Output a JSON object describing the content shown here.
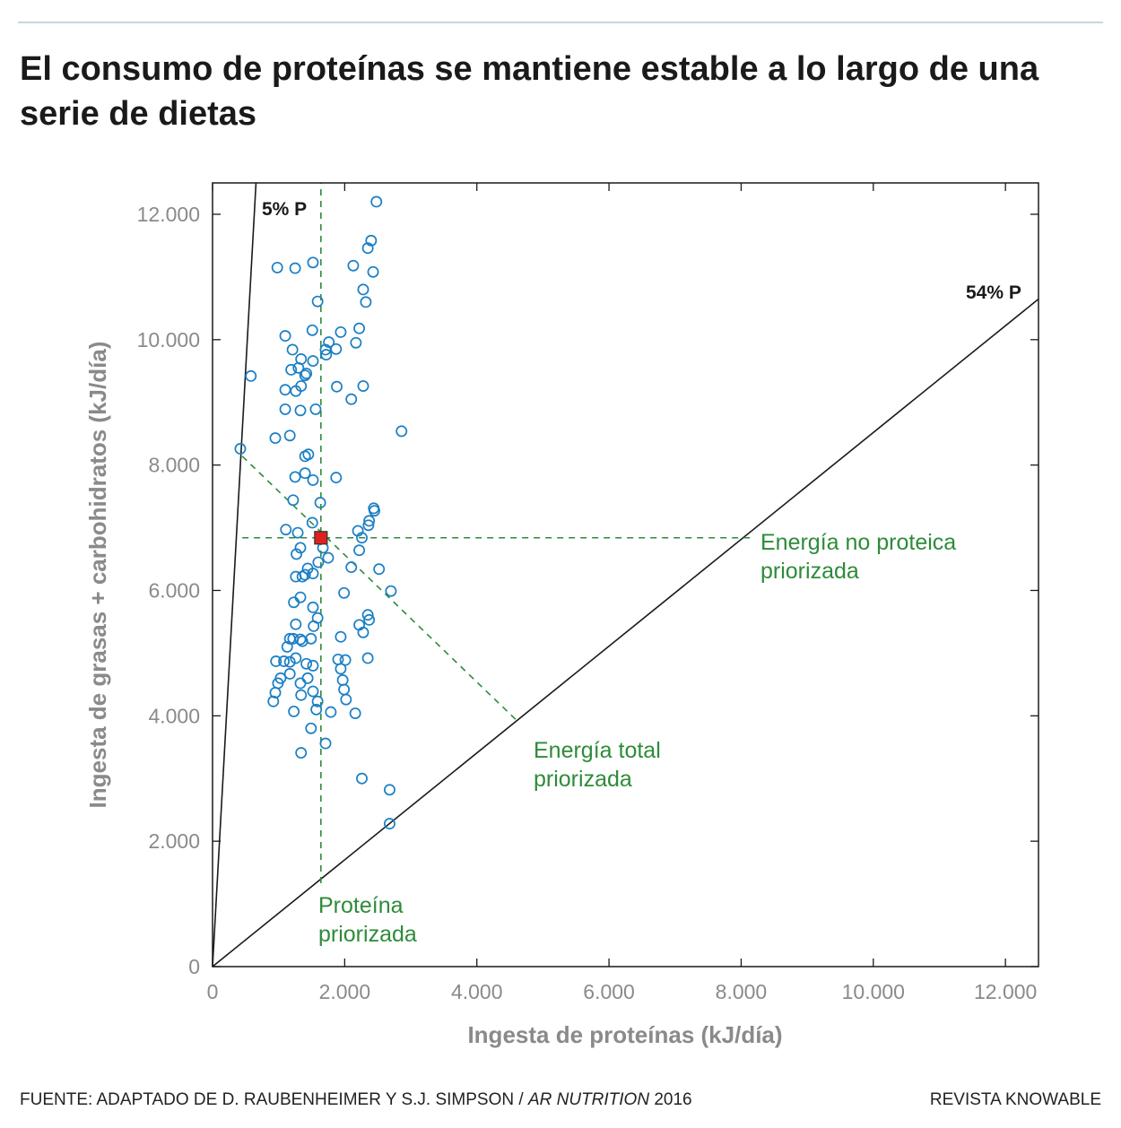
{
  "header": {
    "title": "El consumo de proteínas se mantiene estable a lo largo de una serie de dietas"
  },
  "footer": {
    "source_prefix": "FUENTE: ADAPTADO DE D. RAUBENHEIMER Y S.J. SIMPSON / ",
    "source_journal": "AR NUTRITION",
    "source_year": " 2016",
    "credit": "REVISTA KNOWABLE"
  },
  "chart_data": {
    "type": "scatter",
    "title": "El consumo de proteínas se mantiene estable a lo largo de una serie de dietas",
    "xlabel": "Ingesta de proteínas (kJ/día)",
    "ylabel": "Ingesta de grasas + carbohidratos (kJ/día)",
    "xlim": [
      0,
      12500
    ],
    "ylim": [
      0,
      12500
    ],
    "xticks": [
      0,
      2000,
      4000,
      6000,
      8000,
      10000,
      12000
    ],
    "xtick_labels": [
      "0",
      "2.000",
      "4.000",
      "6.000",
      "8.000",
      "10.000",
      "12.000"
    ],
    "yticks": [
      0,
      2000,
      4000,
      6000,
      8000,
      10000,
      12000
    ],
    "ytick_labels": [
      "0",
      "2.000",
      "4.000",
      "6.000",
      "8.000",
      "10.000",
      "12.000"
    ],
    "grid": false,
    "colors": {
      "points": "#1a7fc4",
      "target": "#e02020",
      "guides": "#2e8b3a",
      "ref_lines": "#1a1a1a"
    },
    "points": [
      [
        2480,
        12200
      ],
      [
        2400,
        11580
      ],
      [
        2350,
        11460
      ],
      [
        980,
        11150
      ],
      [
        1250,
        11140
      ],
      [
        1520,
        11230
      ],
      [
        2130,
        11180
      ],
      [
        2430,
        11080
      ],
      [
        2280,
        10800
      ],
      [
        2320,
        10600
      ],
      [
        1590,
        10610
      ],
      [
        1100,
        10060
      ],
      [
        1510,
        10150
      ],
      [
        1940,
        10120
      ],
      [
        2220,
        10180
      ],
      [
        2170,
        9950
      ],
      [
        1760,
        9960
      ],
      [
        1870,
        9850
      ],
      [
        1710,
        9840
      ],
      [
        1720,
        9760
      ],
      [
        1210,
        9840
      ],
      [
        1340,
        9690
      ],
      [
        1520,
        9660
      ],
      [
        1190,
        9520
      ],
      [
        1300,
        9550
      ],
      [
        1400,
        9430
      ],
      [
        1420,
        9460
      ],
      [
        580,
        9420
      ],
      [
        1100,
        9200
      ],
      [
        1260,
        9180
      ],
      [
        1340,
        9260
      ],
      [
        1880,
        9250
      ],
      [
        2280,
        9260
      ],
      [
        2100,
        9050
      ],
      [
        1100,
        8890
      ],
      [
        1330,
        8870
      ],
      [
        1560,
        8890
      ],
      [
        2860,
        8540
      ],
      [
        950,
        8430
      ],
      [
        1170,
        8470
      ],
      [
        420,
        8260
      ],
      [
        1400,
        8140
      ],
      [
        1450,
        8170
      ],
      [
        1250,
        7810
      ],
      [
        1400,
        7870
      ],
      [
        1520,
        7760
      ],
      [
        1870,
        7800
      ],
      [
        1220,
        7440
      ],
      [
        1630,
        7400
      ],
      [
        2440,
        7310
      ],
      [
        2450,
        7270
      ],
      [
        2370,
        7110
      ],
      [
        2360,
        7040
      ],
      [
        2200,
        6950
      ],
      [
        2260,
        6840
      ],
      [
        1510,
        7080
      ],
      [
        1110,
        6970
      ],
      [
        1290,
        6920
      ],
      [
        1330,
        6680
      ],
      [
        1270,
        6580
      ],
      [
        1670,
        6680
      ],
      [
        2220,
        6640
      ],
      [
        1750,
        6520
      ],
      [
        1600,
        6450
      ],
      [
        2100,
        6370
      ],
      [
        2520,
        6340
      ],
      [
        1440,
        6350
      ],
      [
        1520,
        6270
      ],
      [
        1260,
        6220
      ],
      [
        1360,
        6220
      ],
      [
        1400,
        6250
      ],
      [
        1990,
        5960
      ],
      [
        2700,
        5990
      ],
      [
        1330,
        5890
      ],
      [
        1230,
        5810
      ],
      [
        1520,
        5730
      ],
      [
        1590,
        5560
      ],
      [
        1260,
        5460
      ],
      [
        1530,
        5430
      ],
      [
        2350,
        5610
      ],
      [
        2370,
        5530
      ],
      [
        2220,
        5450
      ],
      [
        1170,
        5230
      ],
      [
        1220,
        5230
      ],
      [
        1330,
        5220
      ],
      [
        1490,
        5230
      ],
      [
        1940,
        5260
      ],
      [
        2280,
        5330
      ],
      [
        960,
        4870
      ],
      [
        1080,
        4870
      ],
      [
        1170,
        4860
      ],
      [
        1260,
        4920
      ],
      [
        1130,
        5100
      ],
      [
        1360,
        5190
      ],
      [
        1420,
        4830
      ],
      [
        1520,
        4800
      ],
      [
        1900,
        4900
      ],
      [
        2010,
        4890
      ],
      [
        2350,
        4920
      ],
      [
        1170,
        4670
      ],
      [
        1030,
        4600
      ],
      [
        990,
        4520
      ],
      [
        950,
        4370
      ],
      [
        920,
        4230
      ],
      [
        1330,
        4520
      ],
      [
        1440,
        4600
      ],
      [
        1340,
        4330
      ],
      [
        1520,
        4390
      ],
      [
        1590,
        4230
      ],
      [
        1570,
        4100
      ],
      [
        1230,
        4070
      ],
      [
        1790,
        4060
      ],
      [
        2160,
        4040
      ],
      [
        1940,
        4750
      ],
      [
        1970,
        4570
      ],
      [
        1990,
        4420
      ],
      [
        2020,
        4260
      ],
      [
        1490,
        3800
      ],
      [
        1710,
        3560
      ],
      [
        1340,
        3410
      ],
      [
        2260,
        3000
      ],
      [
        2680,
        2820
      ],
      [
        2680,
        2280
      ]
    ],
    "target_point": [
      1640,
      6840
    ],
    "reference_lines": [
      {
        "label": "5% P",
        "protein_fraction": 0.05
      },
      {
        "label": "54% P",
        "protein_fraction": 0.54
      }
    ],
    "guides": [
      {
        "label": "Proteína priorizada",
        "from": [
          1640,
          1330
        ],
        "to": [
          1640,
          12500
        ]
      },
      {
        "label": "Energía no proteica priorizada",
        "from": [
          450,
          6840
        ],
        "to": [
          8200,
          6840
        ]
      },
      {
        "label": "Energía total priorizada",
        "from": [
          450,
          8140
        ],
        "to": [
          4620,
          3910
        ]
      }
    ],
    "annotations": {
      "protein_line1": "Proteína",
      "protein_line2": "priorizada",
      "nonprotein_line1": "Energía no proteica",
      "nonprotein_line2": "priorizada",
      "total_line1": "Energía total",
      "total_line2": "priorizada"
    }
  }
}
